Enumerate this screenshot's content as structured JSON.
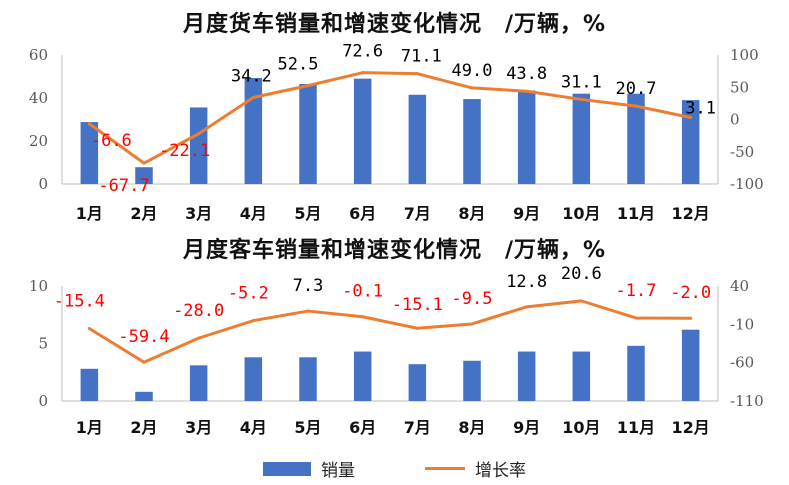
{
  "chart_data": [
    {
      "type": "bar+line",
      "title": "月度货车销量和增速变化情况　/万辆，%",
      "categories": [
        "1月",
        "2月",
        "3月",
        "4月",
        "5月",
        "6月",
        "7月",
        "8月",
        "9月",
        "10月",
        "11月",
        "12月"
      ],
      "series": [
        {
          "name": "销量",
          "type": "bar",
          "axis": "left",
          "color": "#4472C4",
          "values": [
            28.8,
            7.8,
            35.6,
            49.3,
            46.5,
            49.0,
            41.5,
            39.5,
            43.5,
            42.0,
            42.0,
            39.0
          ]
        },
        {
          "name": "增长率",
          "type": "line",
          "axis": "right",
          "color": "#ED7D31",
          "values": [
            -6.6,
            -67.7,
            -22.1,
            34.2,
            52.5,
            72.6,
            71.1,
            49.0,
            43.8,
            31.1,
            20.7,
            3.1
          ],
          "labels": [
            "-6.6",
            "-67.7",
            "-22.1",
            "34.2",
            "52.5",
            "72.6",
            "71.1",
            "49.0",
            "43.8",
            "31.1",
            "20.7",
            "3.1"
          ]
        }
      ],
      "y_left": {
        "ylim": [
          0,
          60
        ],
        "ticks": [
          0,
          20,
          40,
          60
        ]
      },
      "y_right": {
        "ylim": [
          -100,
          100
        ],
        "ticks": [
          -100,
          -50,
          0,
          50,
          100
        ]
      }
    },
    {
      "type": "bar+line",
      "title": "月度客车销量和增速变化情况　/万辆，%",
      "categories": [
        "1月",
        "2月",
        "3月",
        "4月",
        "5月",
        "6月",
        "7月",
        "8月",
        "9月",
        "10月",
        "11月",
        "12月"
      ],
      "series": [
        {
          "name": "销量",
          "type": "bar",
          "axis": "left",
          "color": "#4472C4",
          "values": [
            2.8,
            0.8,
            3.1,
            3.8,
            3.8,
            4.3,
            3.2,
            3.5,
            4.3,
            4.3,
            4.8,
            6.2
          ]
        },
        {
          "name": "增长率",
          "type": "line",
          "axis": "right",
          "color": "#ED7D31",
          "values": [
            -15.4,
            -59.4,
            -28.0,
            -5.2,
            7.3,
            -0.1,
            -15.1,
            -9.5,
            12.8,
            20.6,
            -1.7,
            -2.0
          ],
          "labels": [
            "-15.4",
            "-59.4",
            "-28.0",
            "-5.2",
            "7.3",
            "-0.1",
            "-15.1",
            "-9.5",
            "12.8",
            "20.6",
            "-1.7",
            "-2.0"
          ]
        }
      ],
      "y_left": {
        "ylim": [
          0,
          10
        ],
        "ticks": [
          0,
          5,
          10
        ]
      },
      "y_right": {
        "ylim": [
          -110,
          40
        ],
        "ticks": [
          -110,
          -60,
          -10,
          40
        ]
      }
    }
  ],
  "legend": {
    "bar_label": "销量",
    "line_label": "增长率"
  },
  "colors": {
    "bar": "#4472C4",
    "line": "#ED7D31",
    "negative_label": "#FF0000",
    "positive_label": "#000000"
  }
}
